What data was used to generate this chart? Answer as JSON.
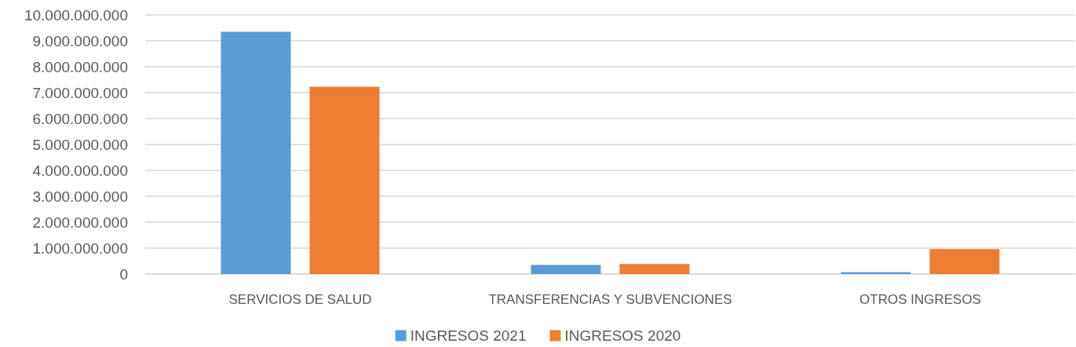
{
  "chart_data": {
    "type": "bar",
    "categories": [
      "SERVICIOS DE SALUD",
      "TRANSFERENCIAS Y SUBVENCIONES",
      "OTROS INGRESOS"
    ],
    "series": [
      {
        "name": "INGRESOS 2021",
        "color": "#5b9bd5",
        "values": [
          9350000000,
          350000000,
          70000000
        ]
      },
      {
        "name": "INGRESOS 2020",
        "color": "#ed7d31",
        "values": [
          7230000000,
          390000000,
          960000000
        ]
      }
    ],
    "ylim": [
      0,
      10000000000
    ],
    "yticks": [
      {
        "value": 0,
        "label": "0"
      },
      {
        "value": 1000000000,
        "label": "1.000.000.000"
      },
      {
        "value": 2000000000,
        "label": "2.000.000.000"
      },
      {
        "value": 3000000000,
        "label": "3.000.000.000"
      },
      {
        "value": 4000000000,
        "label": "4.000.000.000"
      },
      {
        "value": 5000000000,
        "label": "5.000.000.000"
      },
      {
        "value": 6000000000,
        "label": "6.000.000.000"
      },
      {
        "value": 7000000000,
        "label": "7.000.000.000"
      },
      {
        "value": 8000000000,
        "label": "8.000.000.000"
      },
      {
        "value": 9000000000,
        "label": "9.000.000.000"
      },
      {
        "value": 10000000000,
        "label": "10.000.000.000"
      }
    ],
    "grid": "y",
    "legend": "bottom"
  }
}
